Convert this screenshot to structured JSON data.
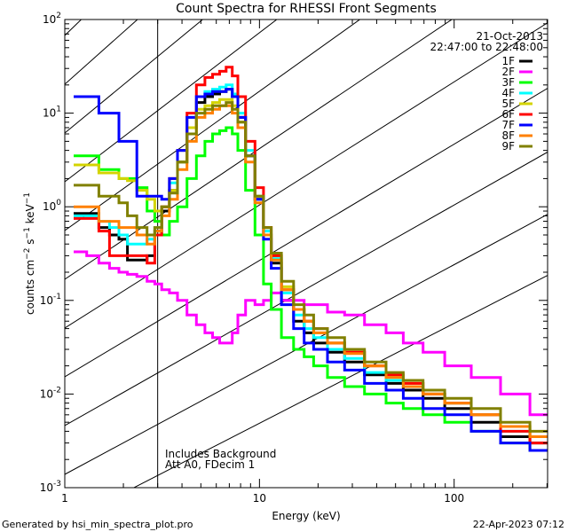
{
  "chart_data": {
    "type": "line",
    "title": "Count Spectra for RHESSI Front Segments",
    "xlabel": "Energy (keV)",
    "ylabel": "counts cm-2 s-1 keV-1",
    "xscale": "log",
    "yscale": "log",
    "xlim": [
      1,
      302
    ],
    "ylim": [
      0.001,
      100
    ],
    "x_ticks": [
      {
        "v": 1,
        "label": "1"
      },
      {
        "v": 10,
        "label": "10"
      },
      {
        "v": 100,
        "label": "100"
      }
    ],
    "y_ticks": [
      {
        "v": 0.001,
        "base": "10",
        "exp": "-3"
      },
      {
        "v": 0.01,
        "base": "10",
        "exp": "-2"
      },
      {
        "v": 0.1,
        "base": "10",
        "exp": "-1"
      },
      {
        "v": 1,
        "base": "10",
        "exp": "0"
      },
      {
        "v": 10,
        "base": "10",
        "exp": "1"
      },
      {
        "v": 100,
        "base": "10",
        "exp": "2"
      }
    ],
    "date": "21-Oct-2013",
    "time_range": "22:47:00 to 22:48:00",
    "annotations": [
      "Includes Background",
      "Att A0, FDecim 1"
    ],
    "excluded_region_keV": [
      1,
      3
    ],
    "legend_placement": "top-right",
    "x": [
      1.2,
      1.4,
      1.6,
      1.8,
      2.0,
      2.2,
      2.5,
      2.8,
      3.0,
      3.3,
      3.6,
      4.0,
      4.5,
      5.0,
      5.5,
      6.0,
      6.5,
      7.0,
      7.5,
      8.0,
      9.0,
      10,
      11,
      12,
      14,
      16,
      18,
      20,
      25,
      30,
      40,
      50,
      60,
      80,
      100,
      150,
      200,
      300
    ],
    "series": [
      {
        "name": "1F",
        "color": "#000000",
        "values": [
          0.85,
          0.85,
          0.6,
          0.5,
          0.45,
          0.27,
          0.27,
          0.3,
          0.55,
          0.9,
          1.5,
          3,
          7,
          13,
          15,
          16,
          17,
          18,
          15,
          9,
          3.5,
          1.2,
          0.5,
          0.25,
          0.1,
          0.06,
          0.045,
          0.035,
          0.028,
          0.022,
          0.016,
          0.013,
          0.011,
          0.009,
          0.007,
          0.005,
          0.0035,
          0.003
        ]
      },
      {
        "name": "2F",
        "color": "#ff00ff",
        "values": [
          0.33,
          0.3,
          0.25,
          0.22,
          0.2,
          0.19,
          0.18,
          0.16,
          0.15,
          0.13,
          0.12,
          0.1,
          0.07,
          0.055,
          0.045,
          0.04,
          0.035,
          0.035,
          0.045,
          0.07,
          0.1,
          0.09,
          0.1,
          0.12,
          0.1,
          0.1,
          0.09,
          0.09,
          0.075,
          0.07,
          0.055,
          0.045,
          0.035,
          0.028,
          0.02,
          0.015,
          0.01,
          0.006
        ]
      },
      {
        "name": "3F",
        "color": "#00ff00",
        "values": [
          3.5,
          3.5,
          2.5,
          2.5,
          2,
          2,
          1.6,
          0.9,
          0.7,
          0.5,
          0.7,
          1,
          2,
          3.5,
          5,
          6,
          6.5,
          7,
          6,
          4,
          1.5,
          0.5,
          0.15,
          0.08,
          0.04,
          0.03,
          0.025,
          0.02,
          0.015,
          0.012,
          0.01,
          0.008,
          0.007,
          0.006,
          0.005,
          0.004,
          0.003,
          0.0025
        ]
      },
      {
        "name": "4F",
        "color": "#00ffff",
        "values": [
          0.8,
          0.8,
          0.7,
          0.6,
          0.5,
          0.4,
          0.4,
          0.45,
          0.6,
          1.0,
          1.8,
          4,
          9,
          15,
          17,
          18,
          19,
          20,
          16,
          10,
          4,
          1.3,
          0.55,
          0.28,
          0.12,
          0.07,
          0.05,
          0.04,
          0.03,
          0.024,
          0.017,
          0.014,
          0.012,
          0.01,
          0.008,
          0.006,
          0.004,
          0.0035
        ]
      },
      {
        "name": "5F",
        "color": "#d4d400",
        "values": [
          2.8,
          2.8,
          2.3,
          2.3,
          2,
          1.9,
          1.5,
          1.2,
          0.9,
          1.0,
          1.5,
          3,
          7,
          11,
          12,
          13,
          14,
          14,
          12,
          8,
          3.5,
          1.3,
          0.6,
          0.3,
          0.14,
          0.08,
          0.06,
          0.045,
          0.035,
          0.028,
          0.02,
          0.016,
          0.013,
          0.01,
          0.008,
          0.006,
          0.0045,
          0.0035
        ]
      },
      {
        "name": "6F",
        "color": "#ff0000",
        "values": [
          0.75,
          0.75,
          0.55,
          0.3,
          0.3,
          0.3,
          0.3,
          0.25,
          0.5,
          1.0,
          2,
          4,
          10,
          20,
          24,
          26,
          28,
          31,
          25,
          15,
          5,
          1.6,
          0.6,
          0.3,
          0.13,
          0.08,
          0.06,
          0.05,
          0.035,
          0.028,
          0.02,
          0.016,
          0.013,
          0.01,
          0.008,
          0.006,
          0.004,
          0.003
        ]
      },
      {
        "name": "7F",
        "color": "#0000ff",
        "values": [
          15,
          15,
          10,
          10,
          5,
          5,
          1.3,
          1.3,
          1.3,
          1.2,
          2,
          4,
          9,
          15,
          16,
          17,
          17,
          18,
          15,
          9,
          3.5,
          1.2,
          0.45,
          0.22,
          0.09,
          0.05,
          0.035,
          0.03,
          0.022,
          0.018,
          0.013,
          0.011,
          0.009,
          0.007,
          0.006,
          0.004,
          0.003,
          0.0025
        ]
      },
      {
        "name": "8F",
        "color": "#ff8000",
        "values": [
          1.0,
          1.0,
          0.7,
          0.7,
          0.6,
          0.6,
          0.5,
          0.4,
          0.55,
          0.8,
          1.2,
          2.5,
          5,
          9,
          10,
          11,
          12,
          12,
          10,
          7,
          3,
          1.1,
          0.5,
          0.27,
          0.13,
          0.08,
          0.06,
          0.045,
          0.035,
          0.027,
          0.02,
          0.015,
          0.012,
          0.01,
          0.008,
          0.006,
          0.0045,
          0.0035
        ]
      },
      {
        "name": "9F",
        "color": "#808000",
        "values": [
          1.7,
          1.7,
          1.3,
          1.3,
          1.1,
          0.8,
          0.6,
          0.5,
          0.6,
          1.0,
          1.4,
          3,
          6,
          10,
          11,
          12,
          12,
          13,
          11,
          8,
          3.5,
          1.3,
          0.6,
          0.32,
          0.16,
          0.09,
          0.07,
          0.05,
          0.04,
          0.03,
          0.022,
          0.017,
          0.014,
          0.011,
          0.009,
          0.007,
          0.005,
          0.004
        ]
      }
    ]
  },
  "footer": {
    "generated_by": "Generated by hsi_min_spectra_plot.pro",
    "timestamp": "22-Apr-2023 07:12"
  }
}
